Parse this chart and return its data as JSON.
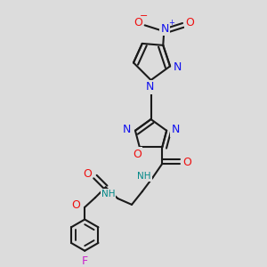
{
  "bg_color": "#dcdcdc",
  "bond_color": "#1a1a1a",
  "bond_lw": 1.5,
  "atom_colors": {
    "N": "#1010ee",
    "O": "#ee1010",
    "F": "#cc22cc",
    "NH": "#008888",
    "NH2": "#1010ee"
  },
  "afs": 7.5,
  "fig_w": 3.0,
  "fig_h": 3.0,
  "dpi": 100
}
